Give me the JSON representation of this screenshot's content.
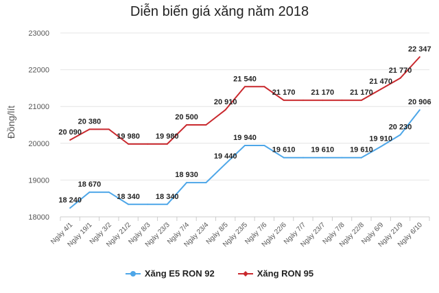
{
  "chart_data": {
    "type": "line",
    "title": "Diễn biến giá xăng năm 2018",
    "ylabel": "Đồng/lít",
    "xlabel": "",
    "ylim": [
      18000,
      23000
    ],
    "yticks": [
      "18000",
      "19000",
      "20000",
      "21000",
      "22000",
      "23000"
    ],
    "grid": true,
    "legend_position": "bottom",
    "categories": [
      "Ngày 4/1",
      "Ngày 19/1",
      "Ngày 3/2",
      "Ngày 21/2",
      "Ngày 8/3",
      "Ngày 23/3",
      "Ngày 7/4",
      "Ngày 23/4",
      "Ngày 8/5",
      "Ngày 23/5",
      "Ngày 7/6",
      "Ngày 22/6",
      "Ngày 7/7",
      "Ngày 23/7",
      "Ngày 7/8",
      "Ngày 22/8",
      "Ngày 6/9",
      "Ngày 21/9",
      "Ngày 6/10"
    ],
    "series": [
      {
        "name": "Xăng E5 RON 92",
        "color": "#4da6e8",
        "values": [
          18240,
          18670,
          18670,
          18340,
          18340,
          18340,
          18930,
          18930,
          19440,
          19940,
          19940,
          19610,
          19610,
          19610,
          19610,
          19610,
          19910,
          20230,
          20906
        ],
        "labels": [
          "18 240",
          "18 670",
          null,
          "18 340",
          null,
          "18 340",
          "18 930",
          null,
          "19 440",
          "19 940",
          null,
          "19 610",
          null,
          "19 610",
          null,
          "19 610",
          "19 910",
          "20 230",
          "20 906"
        ]
      },
      {
        "name": "Xăng RON 95",
        "color": "#c9282d",
        "values": [
          20090,
          20380,
          20380,
          19980,
          19980,
          19980,
          20500,
          20500,
          20910,
          21540,
          21540,
          21170,
          21170,
          21170,
          21170,
          21170,
          21470,
          21770,
          22347
        ],
        "labels": [
          "20 090",
          "20 380",
          null,
          "19 980",
          null,
          "19 980",
          "20 500",
          null,
          "20 910",
          "21 540",
          null,
          "21 170",
          null,
          "21 170",
          null,
          "21 170",
          "21 470",
          "21 770",
          "22 347"
        ]
      }
    ]
  }
}
